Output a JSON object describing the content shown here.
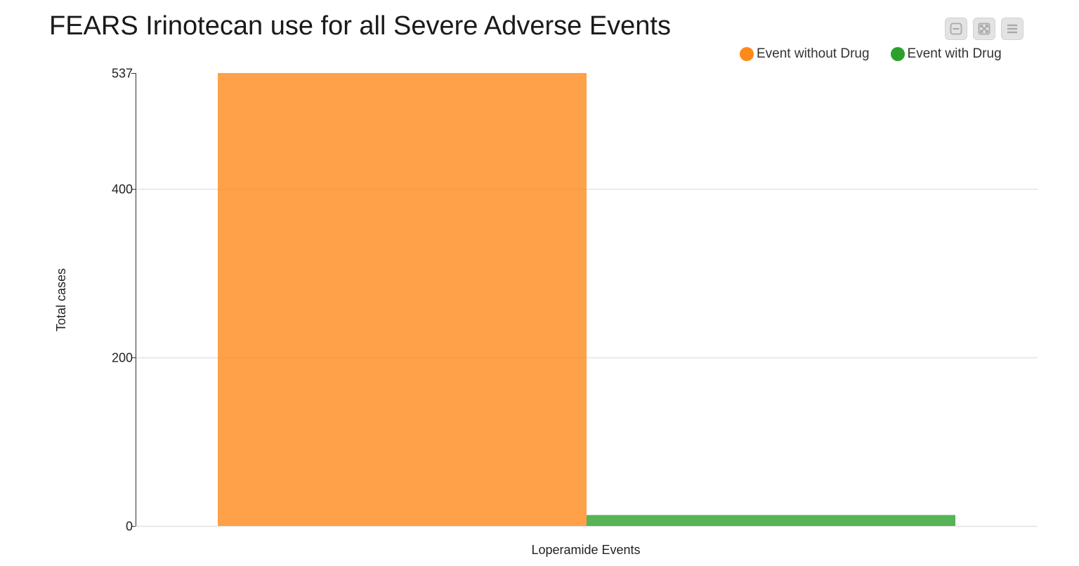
{
  "chart_data": {
    "type": "bar",
    "title": "FEARS Irinotecan use for all Severe Adverse Events",
    "categories": [
      "Loperamide Events"
    ],
    "series": [
      {
        "name": "Event without Drug",
        "color": "#ff8a1c",
        "values": [
          537
        ]
      },
      {
        "name": "Event with Drug",
        "color": "#2ca02c",
        "values": [
          13
        ]
      }
    ],
    "xlabel": "Loperamide Events",
    "ylabel": "Total cases",
    "yticks": [
      0,
      200,
      400,
      537
    ],
    "ylim": [
      0,
      537
    ],
    "grid": true,
    "legend_position": "top-right"
  },
  "toolbar": {
    "buttons": [
      {
        "name": "minimize-icon"
      },
      {
        "name": "fullscreen-icon"
      },
      {
        "name": "menu-icon"
      }
    ]
  }
}
